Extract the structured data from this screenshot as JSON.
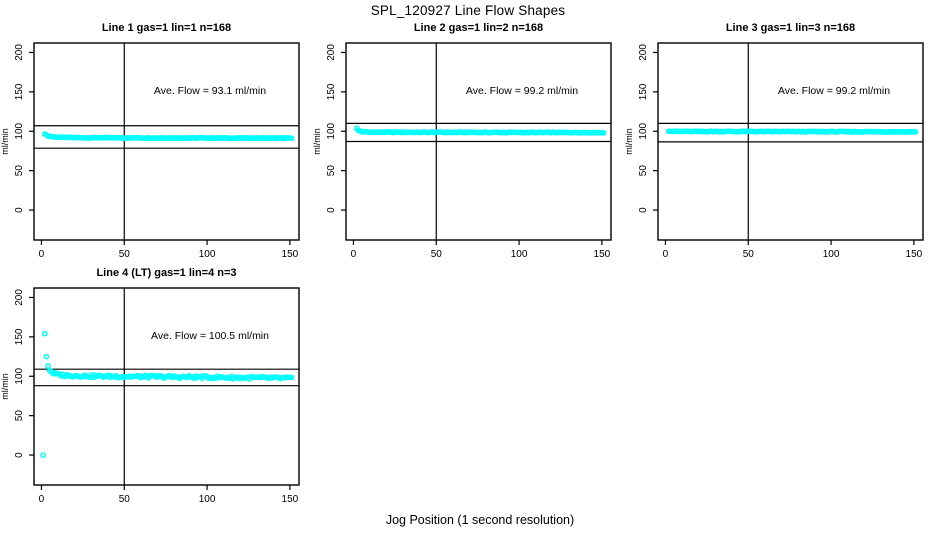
{
  "page": {
    "title": "SPL_120927  Line Flow Shapes",
    "xlabel": "Jog Position (1 second resolution)",
    "background": "#ffffff",
    "line_color": "#000000"
  },
  "chart_data": [
    {
      "type": "scatter",
      "title": "Line 1 gas=1 lin=1 n=168",
      "n": 168,
      "ave_flow_ml_min": 93.1,
      "annotation": "Ave. Flow =  93.1  ml/min",
      "ylabel": "ml/min",
      "xticks": [
        0,
        50,
        100,
        150
      ],
      "yticks": [
        0,
        50,
        100,
        150,
        200
      ],
      "xlim": [
        -4.5,
        155.5
      ],
      "ylim": [
        -38,
        212
      ],
      "vline_x": 50,
      "ref_lines": [
        107,
        78.5
      ],
      "marker": "open-circle",
      "marker_color": "#00ffff",
      "band": {
        "x_start": 2,
        "x_end": 151,
        "count": 150,
        "jitter": 0.45,
        "profile": [
          [
            2,
            97
          ],
          [
            3,
            95
          ],
          [
            5,
            93.5
          ],
          [
            10,
            92.3
          ],
          [
            25,
            91.8
          ],
          [
            151,
            91.2
          ]
        ]
      },
      "extra_points": []
    },
    {
      "type": "scatter",
      "title": "Line 2 gas=1 lin=2 n=168",
      "n": 168,
      "ave_flow_ml_min": 99.2,
      "annotation": "Ave. Flow =  99.2  ml/min",
      "ylabel": "ml/min",
      "xticks": [
        0,
        50,
        100,
        150
      ],
      "yticks": [
        0,
        50,
        100,
        150,
        200
      ],
      "xlim": [
        -4.5,
        155.5
      ],
      "ylim": [
        -38,
        212
      ],
      "vline_x": 50,
      "ref_lines": [
        110,
        87
      ],
      "marker": "open-circle",
      "marker_color": "#00ffff",
      "band": {
        "x_start": 2,
        "x_end": 151,
        "count": 150,
        "jitter": 0.45,
        "profile": [
          [
            2,
            104
          ],
          [
            3,
            101
          ],
          [
            5,
            99.5
          ],
          [
            10,
            98.8
          ],
          [
            151,
            98.3
          ]
        ]
      },
      "extra_points": []
    },
    {
      "type": "scatter",
      "title": "Line 3 gas=1 lin=3 n=168",
      "n": 168,
      "ave_flow_ml_min": 99.2,
      "annotation": "Ave. Flow =  99.2  ml/min",
      "ylabel": "ml/min",
      "xticks": [
        0,
        50,
        100,
        150
      ],
      "yticks": [
        0,
        50,
        100,
        150,
        200
      ],
      "xlim": [
        -4.5,
        155.5
      ],
      "ylim": [
        -38,
        212
      ],
      "vline_x": 50,
      "ref_lines": [
        110,
        86.5
      ],
      "marker": "open-circle",
      "marker_color": "#00ffff",
      "band": {
        "x_start": 2,
        "x_end": 151,
        "count": 150,
        "jitter": 0.45,
        "profile": [
          [
            2,
            100.5
          ],
          [
            5,
            99.8
          ],
          [
            151,
            99.3
          ]
        ]
      },
      "extra_points": []
    },
    {
      "type": "scatter",
      "title": "Line 4 (LT) gas=1 lin=4 n=3",
      "n": 3,
      "ave_flow_ml_min": 100.5,
      "annotation": "Ave. Flow =  100.5  ml/min",
      "ylabel": "ml/min",
      "xticks": [
        0,
        50,
        100,
        150
      ],
      "yticks": [
        0,
        50,
        100,
        150,
        200
      ],
      "xlim": [
        -4.5,
        155.5
      ],
      "ylim": [
        -38,
        212
      ],
      "vline_x": 50,
      "ref_lines": [
        109,
        88
      ],
      "marker": "open-circle",
      "marker_color": "#00ffff",
      "band": {
        "x_start": 5,
        "x_end": 151,
        "count": 150,
        "jitter": 1.7,
        "profile": [
          [
            5,
            108
          ],
          [
            7,
            104
          ],
          [
            10,
            102
          ],
          [
            15,
            101
          ],
          [
            30,
            100.2
          ],
          [
            60,
            99.5
          ],
          [
            100,
            98.8
          ],
          [
            151,
            97.5
          ]
        ]
      },
      "extra_points": [
        [
          1,
          0
        ],
        [
          2,
          154
        ],
        [
          3,
          125
        ],
        [
          4,
          113
        ]
      ]
    }
  ]
}
